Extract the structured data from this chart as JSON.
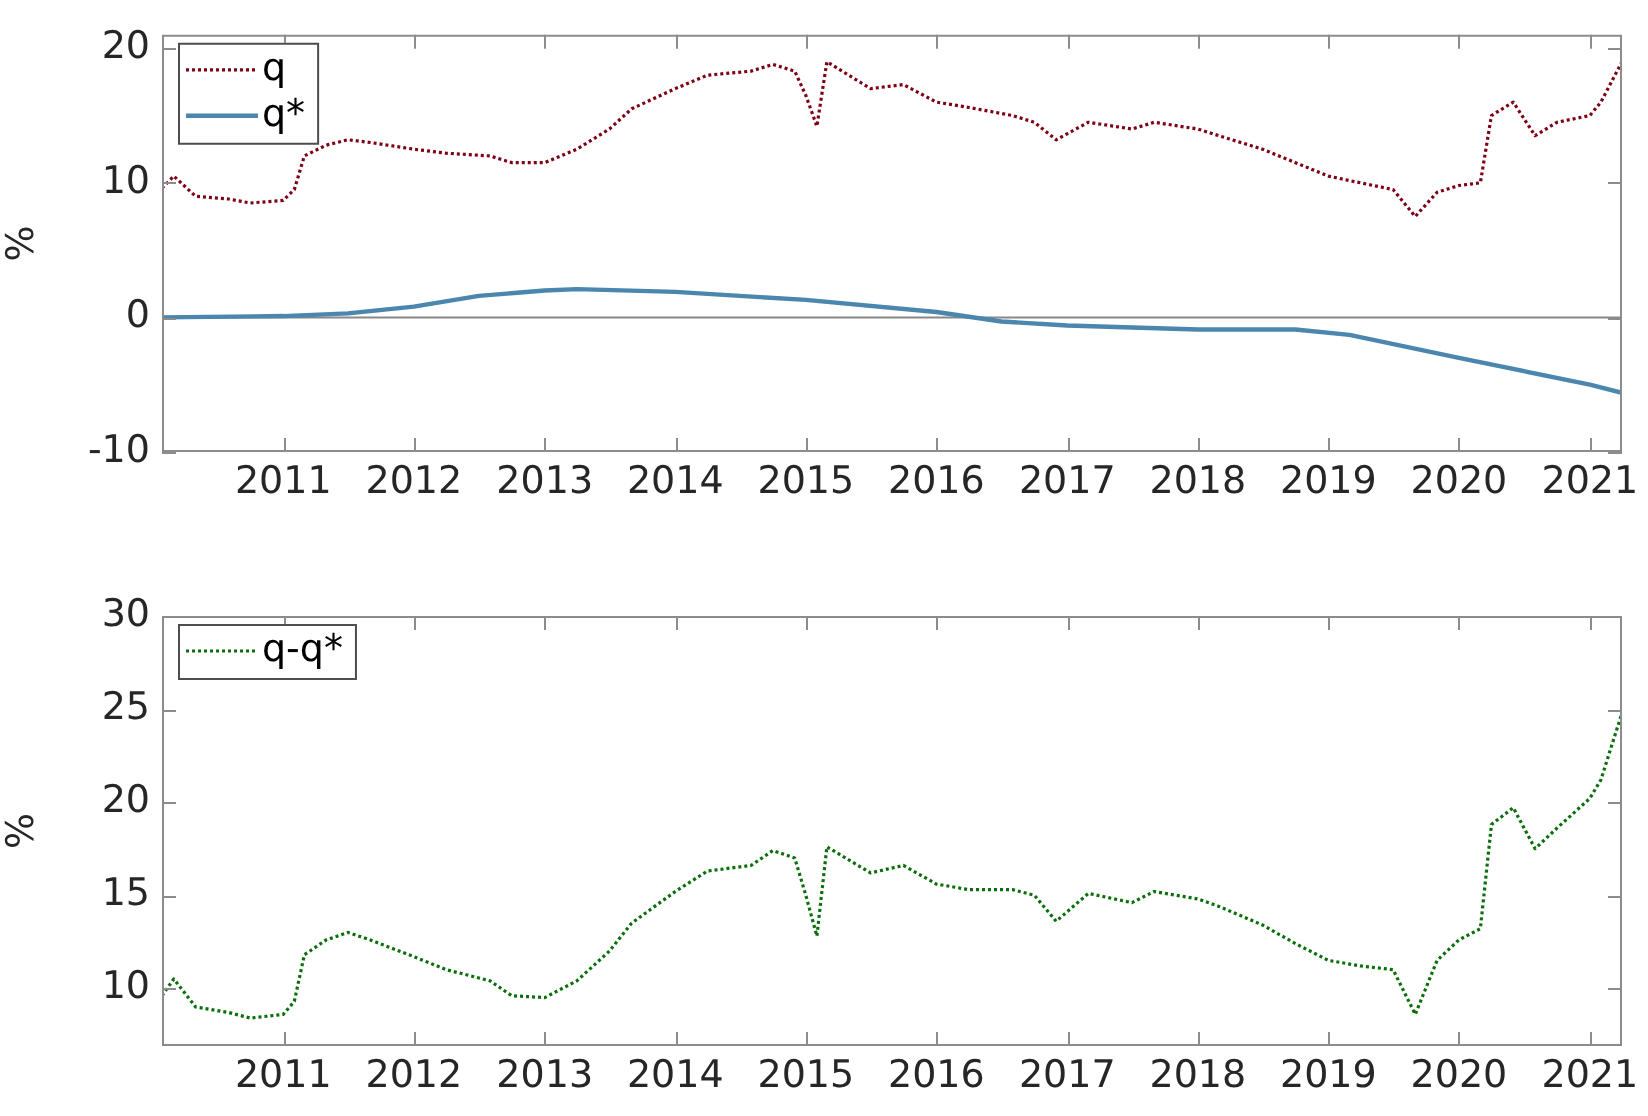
{
  "chart_data": [
    {
      "type": "line",
      "ylabel": "%",
      "xlim": [
        "2010-01-27",
        "2021-04-01"
      ],
      "xticks": [
        "2011",
        "2012",
        "2013",
        "2014",
        "2015",
        "2016",
        "2017",
        "2018",
        "2019",
        "2020",
        "2021"
      ],
      "ylim": [
        -10,
        21
      ],
      "yticks": [
        -10,
        0,
        10,
        20
      ],
      "legend": "top left",
      "ref_lines": [
        {
          "axis": "y",
          "value": 0,
          "color": "#888888"
        }
      ],
      "series": [
        {
          "name": "q",
          "color": "#7f0015",
          "line_style": "dotted",
          "x": [
            "2010-01-27",
            "2010-03",
            "2010-05",
            "2010-08",
            "2010-10",
            "2011-01",
            "2011-02",
            "2011-03",
            "2011-05",
            "2011-07",
            "2011-09",
            "2012-01",
            "2012-04",
            "2012-08",
            "2012-10",
            "2013-01",
            "2013-04",
            "2013-07",
            "2013-09",
            "2014-01",
            "2014-04",
            "2014-08",
            "2014-10",
            "2014-12",
            "2015-01",
            "2015-02",
            "2015-03",
            "2015-07",
            "2015-10",
            "2016-01",
            "2016-04",
            "2016-08",
            "2016-10",
            "2016-12",
            "2017-03",
            "2017-07",
            "2017-09",
            "2018-01",
            "2018-03",
            "2018-07",
            "2018-10",
            "2019-01",
            "2019-04",
            "2019-07",
            "2019-09",
            "2019-11",
            "2020-01",
            "2020-03",
            "2020-04",
            "2020-06",
            "2020-08",
            "2020-10",
            "2021-01",
            "2021-02",
            "2021-04-01"
          ],
          "values": [
            9.6,
            10.5,
            9.0,
            8.8,
            8.5,
            8.7,
            9.5,
            12.0,
            12.8,
            13.2,
            13.0,
            12.5,
            12.2,
            12.0,
            11.5,
            11.5,
            12.5,
            14.0,
            15.5,
            17.0,
            18.0,
            18.3,
            18.8,
            18.3,
            16.5,
            14.2,
            19.0,
            17.0,
            17.3,
            16.0,
            15.6,
            15.0,
            14.5,
            13.2,
            14.5,
            14.0,
            14.5,
            14.0,
            13.5,
            12.5,
            11.5,
            10.5,
            10.0,
            9.5,
            7.5,
            9.3,
            9.8,
            10.0,
            15.0,
            16.0,
            13.5,
            14.5,
            15.0,
            16.0,
            19.0
          ]
        },
        {
          "name": "q*",
          "color": "#4a86ad",
          "line_style": "solid",
          "x": [
            "2010-01-27",
            "2011-01",
            "2011-07",
            "2012-01",
            "2012-07",
            "2013-01",
            "2013-04",
            "2014-01",
            "2015-01",
            "2016-01",
            "2016-07",
            "2017-01",
            "2018-01",
            "2018-10",
            "2019-03",
            "2020-01",
            "2021-01",
            "2021-04-01"
          ],
          "values": [
            0,
            0.1,
            0.3,
            0.8,
            1.6,
            2.0,
            2.1,
            1.9,
            1.3,
            0.4,
            -0.3,
            -0.6,
            -0.9,
            -0.9,
            -1.3,
            -3.0,
            -5.0,
            -5.6
          ]
        }
      ]
    },
    {
      "type": "line",
      "ylabel": "%",
      "xlim": [
        "2010-01-27",
        "2021-04-01"
      ],
      "xticks": [
        "2011",
        "2012",
        "2013",
        "2014",
        "2015",
        "2016",
        "2017",
        "2018",
        "2019",
        "2020",
        "2021"
      ],
      "ylim": [
        6.9,
        30
      ],
      "yticks": [
        10,
        15,
        20,
        25,
        30
      ],
      "legend": "top left",
      "series": [
        {
          "name": "q-q*",
          "color": "#0a6e0a",
          "line_style": "dotted",
          "x": [
            "2010-01-27",
            "2010-03",
            "2010-05",
            "2010-08",
            "2010-10",
            "2011-01",
            "2011-02",
            "2011-03",
            "2011-05",
            "2011-07",
            "2011-09",
            "2012-01",
            "2012-04",
            "2012-08",
            "2012-10",
            "2013-01",
            "2013-04",
            "2013-07",
            "2013-09",
            "2014-01",
            "2014-04",
            "2014-08",
            "2014-10",
            "2014-12",
            "2015-01",
            "2015-02",
            "2015-03",
            "2015-07",
            "2015-10",
            "2016-01",
            "2016-04",
            "2016-08",
            "2016-10",
            "2016-12",
            "2017-03",
            "2017-07",
            "2017-09",
            "2018-01",
            "2018-03",
            "2018-07",
            "2018-10",
            "2019-01",
            "2019-04",
            "2019-07",
            "2019-09",
            "2019-11",
            "2020-01",
            "2020-03",
            "2020-04",
            "2020-06",
            "2020-08",
            "2020-10",
            "2021-01",
            "2021-02",
            "2021-04-01"
          ],
          "values": [
            9.6,
            10.5,
            9.0,
            8.7,
            8.4,
            8.6,
            9.3,
            11.8,
            12.6,
            13.0,
            12.6,
            11.7,
            11.0,
            10.4,
            9.6,
            9.5,
            10.4,
            12.0,
            13.5,
            15.2,
            16.3,
            16.6,
            17.4,
            17.0,
            15.0,
            12.8,
            17.6,
            16.2,
            16.6,
            15.6,
            15.3,
            15.3,
            15.0,
            13.6,
            15.1,
            14.6,
            15.2,
            14.8,
            14.4,
            13.4,
            12.4,
            11.5,
            11.2,
            11.0,
            8.6,
            11.5,
            12.6,
            13.2,
            18.8,
            19.7,
            17.5,
            18.6,
            20.2,
            21.2,
            24.8
          ]
        }
      ]
    }
  ]
}
